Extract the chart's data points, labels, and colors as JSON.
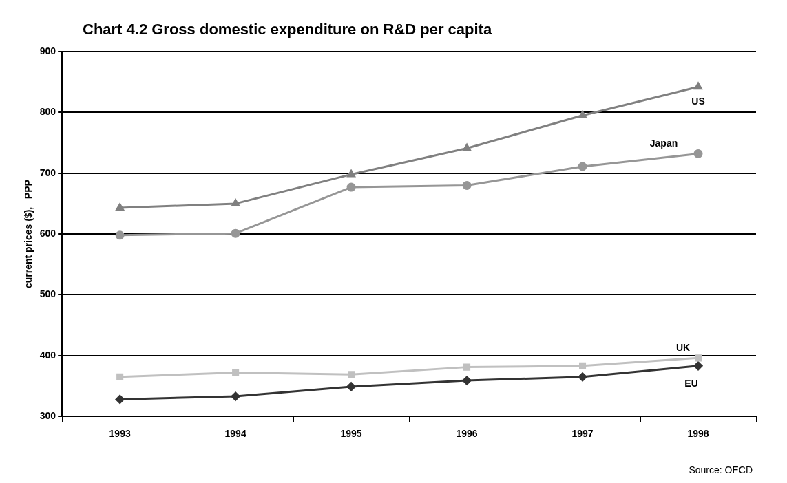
{
  "chart_data": {
    "type": "line",
    "title": "Chart 4.2 Gross domestic expenditure on R&D per capita",
    "ylabel": "current prices ($),   PPP",
    "categories": [
      "1993",
      "1994",
      "1995",
      "1996",
      "1997",
      "1998"
    ],
    "series": [
      {
        "name": "US",
        "color": "#808080",
        "marker": "triangle",
        "values": [
          643,
          650,
          698,
          741,
          795,
          842
        ]
      },
      {
        "name": "Japan",
        "color": "#969696",
        "marker": "circle",
        "values": [
          598,
          601,
          677,
          680,
          711,
          732
        ]
      },
      {
        "name": "UK",
        "color": "#c0c0c0",
        "marker": "square",
        "values": [
          365,
          372,
          369,
          381,
          383,
          396
        ]
      },
      {
        "name": "EU",
        "color": "#333333",
        "marker": "diamond",
        "values": [
          328,
          333,
          349,
          359,
          365,
          383
        ]
      }
    ],
    "ylim": [
      300,
      900
    ],
    "yticks": [
      300,
      400,
      500,
      600,
      700,
      800,
      900
    ],
    "grid": "y",
    "legend": false,
    "line_style": "solid",
    "annotations": [
      "Source: OECD"
    ]
  }
}
